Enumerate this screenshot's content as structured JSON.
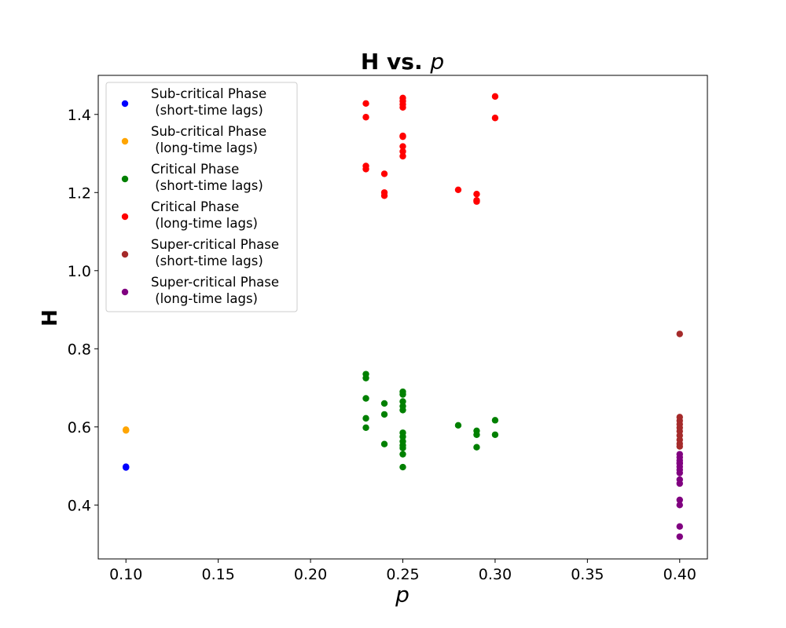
{
  "chart_data": {
    "type": "scatter",
    "title_main": "H vs. ",
    "title_var": "p",
    "xlabel": "p",
    "ylabel": "H",
    "xlim": [
      0.085,
      0.415
    ],
    "ylim": [
      0.262,
      1.5
    ],
    "xticks": [
      "0.10",
      "0.15",
      "0.20",
      "0.25",
      "0.30",
      "0.35",
      "0.40"
    ],
    "yticks": [
      "0.4",
      "0.6",
      "0.8",
      "1.0",
      "1.2",
      "1.4"
    ],
    "grid": false,
    "legend_position": "top-left",
    "series": [
      {
        "name_line1": "Sub-critical Phase",
        "name_line2": " (short-time lags)",
        "color": "#0000ff",
        "x": [
          0.1,
          0.1,
          0.1
        ],
        "y": [
          0.497,
          0.496,
          0.498
        ]
      },
      {
        "name_line1": "Sub-critical Phase",
        "name_line2": " (long-time lags)",
        "color": "#ffa500",
        "x": [
          0.1,
          0.1,
          0.1
        ],
        "y": [
          0.592,
          0.591,
          0.593
        ]
      },
      {
        "name_line1": "Critical Phase",
        "name_line2": " (short-time lags)",
        "color": "#008000",
        "x": [
          0.23,
          0.23,
          0.23,
          0.23,
          0.23,
          0.24,
          0.24,
          0.24,
          0.25,
          0.25,
          0.25,
          0.25,
          0.25,
          0.25,
          0.25,
          0.25,
          0.25,
          0.25,
          0.25,
          0.25,
          0.28,
          0.29,
          0.29,
          0.29,
          0.3,
          0.3
        ],
        "y": [
          0.735,
          0.725,
          0.673,
          0.622,
          0.598,
          0.66,
          0.632,
          0.556,
          0.69,
          0.683,
          0.665,
          0.653,
          0.643,
          0.585,
          0.575,
          0.563,
          0.553,
          0.546,
          0.53,
          0.497,
          0.604,
          0.59,
          0.58,
          0.548,
          0.617,
          0.58
        ],
        "x_dup_marker": null
      },
      {
        "name_line1": "Critical Phase",
        "name_line2": " (long-time lags)",
        "color": "#ff0000",
        "x": [
          0.23,
          0.23,
          0.23,
          0.23,
          0.24,
          0.24,
          0.24,
          0.25,
          0.25,
          0.25,
          0.25,
          0.25,
          0.25,
          0.25,
          0.25,
          0.25,
          0.28,
          0.29,
          0.29,
          0.29,
          0.3,
          0.3
        ],
        "y": [
          1.428,
          1.393,
          1.268,
          1.26,
          1.248,
          1.2,
          1.192,
          1.442,
          1.434,
          1.426,
          1.418,
          1.345,
          1.318,
          1.305,
          1.293,
          1.343,
          1.207,
          1.196,
          1.18,
          1.177,
          1.446,
          1.391
        ]
      },
      {
        "name_line1": "Super-critical Phase",
        "name_line2": " (short-time lags)",
        "color": "#a52a2a",
        "x": [
          0.4,
          0.4,
          0.4,
          0.4,
          0.4,
          0.4,
          0.4,
          0.4,
          0.4,
          0.4
        ],
        "y": [
          0.838,
          0.625,
          0.616,
          0.607,
          0.598,
          0.589,
          0.578,
          0.567,
          0.557,
          0.55
        ]
      },
      {
        "name_line1": "Super-critical Phase",
        "name_line2": " (long-time lags)",
        "color": "#800080",
        "x": [
          0.4,
          0.4,
          0.4,
          0.4,
          0.4,
          0.4,
          0.4,
          0.4,
          0.4,
          0.4,
          0.4,
          0.4,
          0.4,
          0.4
        ],
        "y": [
          0.53,
          0.522,
          0.514,
          0.506,
          0.498,
          0.49,
          0.482,
          0.465,
          0.455,
          0.413,
          0.4,
          0.345,
          0.319,
          0.508
        ]
      }
    ]
  }
}
